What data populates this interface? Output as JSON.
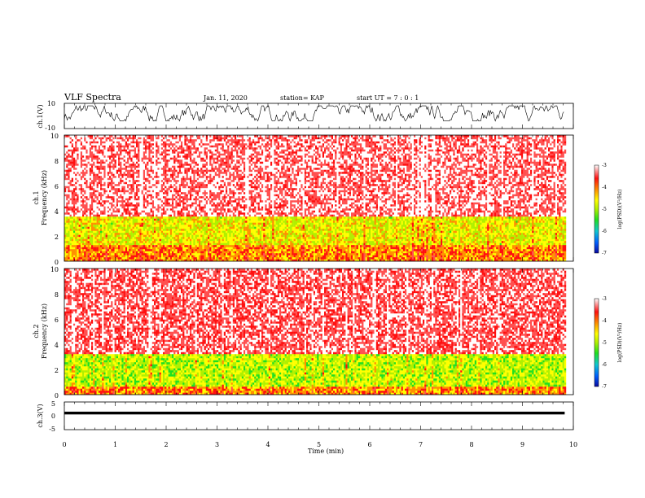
{
  "header": {
    "title": "VLF Spectra",
    "date": "Jan. 11, 2020",
    "station": "station= KAP",
    "start_ut": "start UT =  7 : 0  : 1"
  },
  "colors": {
    "trace": "#000000",
    "colorbar_stops": [
      "#0a0aa0",
      "#0060ff",
      "#10c8d0",
      "#20e020",
      "#b0f000",
      "#ffff00",
      "#ff9000",
      "#ff1010",
      "#ffffff"
    ]
  },
  "chart_data": [
    {
      "type": "line",
      "panel": "ch1-waveform",
      "ylabel": "ch.1(V)",
      "yticks": [
        "10",
        "-10"
      ],
      "ylim": [
        -10,
        10
      ],
      "x_range_min": [
        0,
        9.83
      ],
      "envelope_v": [
        -4,
        8
      ]
    },
    {
      "type": "heatmap",
      "panel": "ch1-spectrogram",
      "ylabel_top": "ch.1",
      "ylabel": "Frequency (kHz)",
      "yticks": [
        "0",
        "2",
        "4",
        "6",
        "8",
        "10"
      ],
      "ylim_khz": [
        0,
        10
      ],
      "xlim_min": [
        0,
        10
      ],
      "data_extent_min": 9.83,
      "band_structure_khz": [
        {
          "from": 0,
          "to": 1.2,
          "level": -4.3
        },
        {
          "from": 1.2,
          "to": 3.5,
          "level": -4.9
        },
        {
          "from": 3.5,
          "to": 10,
          "level": -3.3
        }
      ],
      "colorbar": {
        "label": "log(PSD)(V²/Hz)",
        "ticks": [
          "-3",
          "-4",
          "-5",
          "-6",
          "-7"
        ],
        "range": [
          -7,
          -3
        ]
      }
    },
    {
      "type": "heatmap",
      "panel": "ch2-spectrogram",
      "ylabel_top": "ch.2",
      "ylabel": "Frequency (kHz)",
      "yticks": [
        "0",
        "2",
        "4",
        "6",
        "8",
        "10"
      ],
      "ylim_khz": [
        0,
        10
      ],
      "xlim_min": [
        0,
        10
      ],
      "data_extent_min": 9.83,
      "band_structure_khz": [
        {
          "from": 0,
          "to": 0.6,
          "level": -4.3
        },
        {
          "from": 0.6,
          "to": 3.2,
          "level": -5.1
        },
        {
          "from": 3.2,
          "to": 10,
          "level": -3.4
        }
      ],
      "colorbar": {
        "label": "log(PSD)(V²/Hz)",
        "ticks": [
          "-3",
          "-4",
          "-5",
          "-6",
          "-7"
        ],
        "range": [
          -7,
          -3
        ]
      }
    },
    {
      "type": "line",
      "panel": "ch3-waveform",
      "ylabel": "ch.3(V)",
      "yticks": [
        "5",
        "0",
        "-5"
      ],
      "ylim": [
        -5,
        5
      ],
      "x_range_min": [
        0,
        9.83
      ],
      "envelope_v": [
        0.5,
        1.5
      ]
    }
  ],
  "xaxis": {
    "label": "Time (min)",
    "ticks": [
      "0",
      "1",
      "2",
      "3",
      "4",
      "5",
      "6",
      "7",
      "8",
      "9",
      "10"
    ],
    "range": [
      0,
      10
    ]
  }
}
